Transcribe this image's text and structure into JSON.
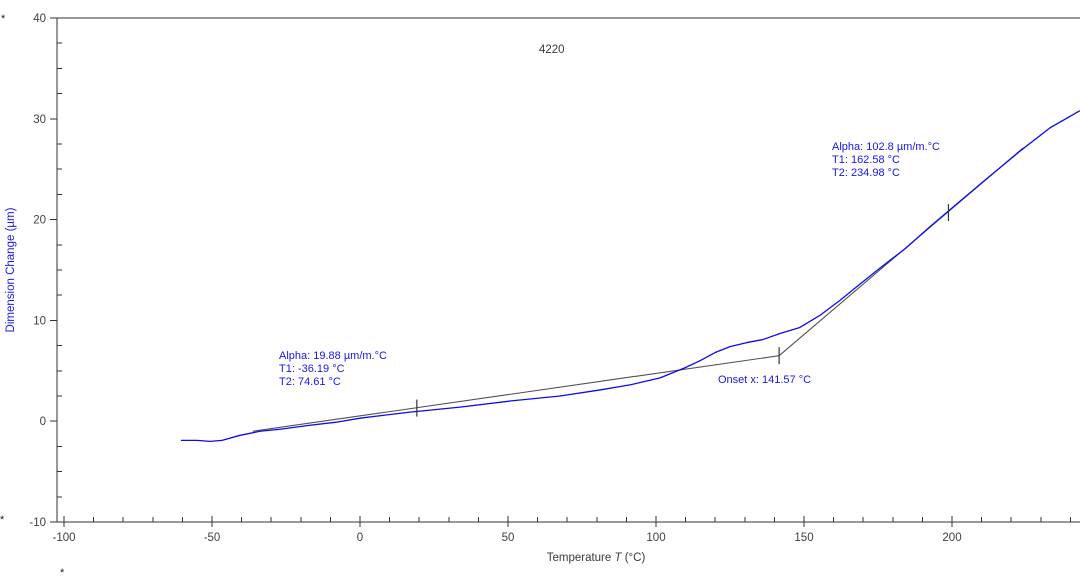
{
  "title": "4220",
  "colors": {
    "background": "#ffffff",
    "curve": "#0b0bf0",
    "annotation_text": "#1717e8",
    "axis": "#333333",
    "tick_label": "#404040",
    "tangent": "#4f4f4f",
    "marker": "#333333"
  },
  "axes": {
    "x": {
      "label_prefix": "Temperature ",
      "label_symbol": "T",
      "label_suffix": " (°C)"
    },
    "y": {
      "label": "Dimension Change (µm)"
    }
  },
  "annotations": {
    "alpha1": {
      "line1": "Alpha: 19.88 µm/m.°C",
      "line2": "T1: -36.19 °C",
      "line3": "T2: 74.61 °C"
    },
    "alpha2": {
      "line1": "Alpha: 102.8 µm/m.°C",
      "line2": "T1: 162.58 °C",
      "line3": "T2: 234.98 °C"
    },
    "onset": "Onset x: 141.57 °C"
  },
  "cursors": {
    "top_left": "*",
    "bottom_left": "*",
    "bottom_axis": "*"
  },
  "chart_data": {
    "type": "line",
    "title": "4220",
    "xlabel": "Temperature T (°C)",
    "ylabel": "Dimension Change (µm)",
    "xlim": [
      -100,
      243
    ],
    "ylim": [
      -10,
      40
    ],
    "grid": false,
    "x_major_ticks": [
      -100,
      -50,
      0,
      50,
      100,
      150,
      200
    ],
    "x_minor_step": 10,
    "y_major_ticks": [
      40,
      30,
      20,
      10,
      0,
      -10
    ],
    "y_minor_step": 2.5,
    "series": [
      {
        "name": "dimension_change_vs_temperature",
        "color": "#0b0bf0",
        "points": [
          [
            -60.5,
            -1.9
          ],
          [
            -55.0,
            -1.9
          ],
          [
            -50.7,
            -2.0
          ],
          [
            -46.6,
            -1.9
          ],
          [
            -40.5,
            -1.4
          ],
          [
            -33.8,
            -1.0
          ],
          [
            -27.0,
            -0.8
          ],
          [
            -16.9,
            -0.4
          ],
          [
            -8.0,
            -0.1
          ],
          [
            0.0,
            0.3
          ],
          [
            16.9,
            0.9
          ],
          [
            33.8,
            1.4
          ],
          [
            50.7,
            2.0
          ],
          [
            67.6,
            2.5
          ],
          [
            81.1,
            3.1
          ],
          [
            91.2,
            3.6
          ],
          [
            101.4,
            4.3
          ],
          [
            109.8,
            5.3
          ],
          [
            114.9,
            6.0
          ],
          [
            119.9,
            6.8
          ],
          [
            125.0,
            7.4
          ],
          [
            130.7,
            7.8
          ],
          [
            136.1,
            8.1
          ],
          [
            141.9,
            8.7
          ],
          [
            148.6,
            9.3
          ],
          [
            155.4,
            10.5
          ],
          [
            162.2,
            12.0
          ],
          [
            168.9,
            13.6
          ],
          [
            175.7,
            15.2
          ],
          [
            184.1,
            17.1
          ],
          [
            192.6,
            19.3
          ],
          [
            201.0,
            21.4
          ],
          [
            211.1,
            23.9
          ],
          [
            223.0,
            26.8
          ],
          [
            233.1,
            29.1
          ],
          [
            243.2,
            30.8
          ]
        ]
      }
    ],
    "tangents": [
      {
        "name": "tangent_region_1",
        "points": [
          [
            -36.2,
            -1.0
          ],
          [
            141.6,
            6.5
          ]
        ]
      },
      {
        "name": "tangent_region_2",
        "points": [
          [
            141.6,
            6.5
          ],
          [
            224.0,
            27.1
          ]
        ]
      }
    ],
    "markers": [
      {
        "name": "tangent1_midpoint",
        "t": 19.2,
        "v": 1.3
      },
      {
        "name": "onset_point",
        "t": 141.6,
        "v": 6.5
      },
      {
        "name": "tangent2_midpoint",
        "t": 198.8,
        "v": 20.7
      }
    ],
    "analysis": {
      "alpha1_um_per_m_degC": 19.88,
      "alpha1_T1_degC": -36.19,
      "alpha1_T2_degC": 74.61,
      "alpha2_um_per_m_degC": 102.8,
      "alpha2_T1_degC": 162.58,
      "alpha2_T2_degC": 234.98,
      "onset_x_degC": 141.57
    }
  }
}
